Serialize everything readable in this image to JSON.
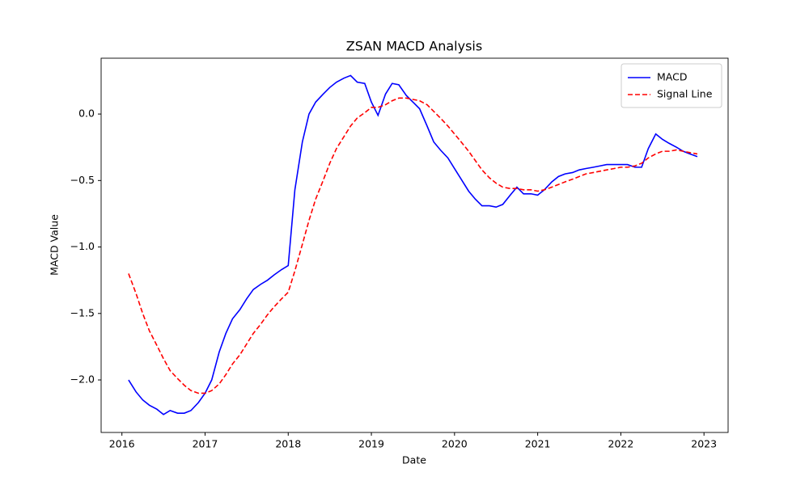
{
  "chart_data": {
    "type": "line",
    "title": "ZSAN MACD Analysis",
    "x_label": "Date",
    "y_label": "MACD Value",
    "x": [
      2016.08,
      2016.17,
      2016.25,
      2016.33,
      2016.42,
      2016.5,
      2016.58,
      2016.67,
      2016.75,
      2016.83,
      2016.92,
      2017.0,
      2017.08,
      2017.17,
      2017.25,
      2017.33,
      2017.42,
      2017.5,
      2017.58,
      2017.67,
      2017.75,
      2017.83,
      2017.92,
      2018.0,
      2018.08,
      2018.17,
      2018.25,
      2018.33,
      2018.42,
      2018.5,
      2018.58,
      2018.67,
      2018.75,
      2018.83,
      2018.92,
      2019.0,
      2019.08,
      2019.17,
      2019.25,
      2019.33,
      2019.42,
      2019.5,
      2019.58,
      2019.67,
      2019.75,
      2019.83,
      2019.92,
      2020.0,
      2020.08,
      2020.17,
      2020.25,
      2020.33,
      2020.42,
      2020.5,
      2020.58,
      2020.67,
      2020.75,
      2020.83,
      2020.92,
      2021.0,
      2021.08,
      2021.17,
      2021.25,
      2021.33,
      2021.42,
      2021.5,
      2021.58,
      2021.67,
      2021.75,
      2021.83,
      2021.92,
      2022.0,
      2022.08,
      2022.17,
      2022.25,
      2022.33,
      2022.42,
      2022.5,
      2022.58,
      2022.67,
      2022.75,
      2022.83,
      2022.92
    ],
    "series": [
      {
        "name": "MACD",
        "color": "#0000ff",
        "linestyle": "solid",
        "values": [
          -2.0,
          -2.09,
          -2.15,
          -2.19,
          -2.22,
          -2.26,
          -2.23,
          -2.25,
          -2.25,
          -2.23,
          -2.17,
          -2.1,
          -2.0,
          -1.79,
          -1.65,
          -1.54,
          -1.47,
          -1.39,
          -1.32,
          -1.28,
          -1.25,
          -1.21,
          -1.17,
          -1.14,
          -0.57,
          -0.21,
          0.0,
          0.09,
          0.15,
          0.2,
          0.24,
          0.27,
          0.29,
          0.24,
          0.23,
          0.09,
          -0.01,
          0.15,
          0.23,
          0.22,
          0.14,
          0.09,
          0.04,
          -0.09,
          -0.21,
          -0.27,
          -0.33,
          -0.41,
          -0.49,
          -0.58,
          -0.64,
          -0.69,
          -0.69,
          -0.7,
          -0.68,
          -0.61,
          -0.55,
          -0.6,
          -0.6,
          -0.61,
          -0.57,
          -0.51,
          -0.47,
          -0.45,
          -0.44,
          -0.42,
          -0.41,
          -0.4,
          -0.39,
          -0.38,
          -0.38,
          -0.38,
          -0.38,
          -0.4,
          -0.4,
          -0.26,
          -0.15,
          -0.19,
          -0.22,
          -0.25,
          -0.28,
          -0.3,
          -0.32
        ]
      },
      {
        "name": "Signal Line",
        "color": "#ff0000",
        "linestyle": "dashed",
        "values": [
          -1.2,
          -1.35,
          -1.5,
          -1.63,
          -1.74,
          -1.84,
          -1.93,
          -1.99,
          -2.04,
          -2.08,
          -2.1,
          -2.1,
          -2.08,
          -2.03,
          -1.96,
          -1.88,
          -1.81,
          -1.73,
          -1.65,
          -1.58,
          -1.51,
          -1.45,
          -1.39,
          -1.34,
          -1.18,
          -0.98,
          -0.8,
          -0.64,
          -0.5,
          -0.37,
          -0.26,
          -0.17,
          -0.09,
          -0.03,
          0.01,
          0.05,
          0.05,
          0.07,
          0.1,
          0.12,
          0.12,
          0.11,
          0.1,
          0.07,
          0.02,
          -0.03,
          -0.09,
          -0.15,
          -0.21,
          -0.28,
          -0.35,
          -0.42,
          -0.48,
          -0.52,
          -0.55,
          -0.56,
          -0.56,
          -0.57,
          -0.57,
          -0.58,
          -0.57,
          -0.55,
          -0.53,
          -0.51,
          -0.49,
          -0.47,
          -0.45,
          -0.44,
          -0.43,
          -0.42,
          -0.41,
          -0.4,
          -0.4,
          -0.39,
          -0.37,
          -0.33,
          -0.3,
          -0.28,
          -0.28,
          -0.27,
          -0.28,
          -0.29,
          -0.3
        ]
      }
    ],
    "xlim": [
      2015.75,
      2023.29
    ],
    "ylim": [
      -2.395,
      0.42
    ],
    "xticks": [
      2016,
      2017,
      2018,
      2019,
      2020,
      2021,
      2022,
      2023
    ],
    "yticks": [
      {
        "value": -2.0,
        "label": "−2.0"
      },
      {
        "value": -1.5,
        "label": "−1.5"
      },
      {
        "value": -1.0,
        "label": "−1.0"
      },
      {
        "value": -0.5,
        "label": "−0.5"
      },
      {
        "value": 0.0,
        "label": "0.0"
      }
    ],
    "grid": false,
    "legend": "upper right"
  }
}
